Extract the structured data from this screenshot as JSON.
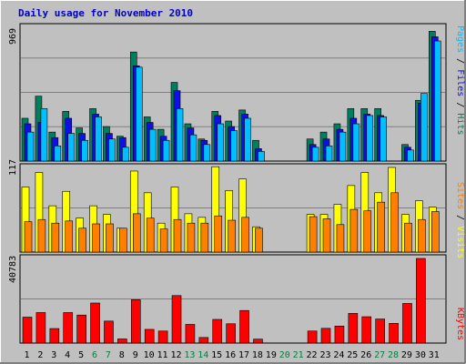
{
  "title": "Daily usage for November 2010",
  "chart_data": [
    {
      "type": "bar",
      "panel": "pages-files-hits",
      "y_max_label": "969",
      "ylim": [
        0,
        969
      ],
      "legend": [
        "Pages",
        "/",
        "Files",
        "/",
        "Hits"
      ],
      "categories": [
        "1",
        "2",
        "3",
        "4",
        "5",
        "6",
        "7",
        "8",
        "9",
        "10",
        "11",
        "12",
        "13",
        "14",
        "15",
        "16",
        "17",
        "18",
        "19",
        "20",
        "21",
        "22",
        "23",
        "24",
        "25",
        "26",
        "27",
        "28",
        "29",
        "30",
        "31"
      ],
      "weekend_days": [
        "6",
        "7",
        "13",
        "14",
        "20",
        "21",
        "27",
        "28"
      ],
      "series": [
        {
          "name": "Hits",
          "color": "#007f5f",
          "values": [
            310,
            470,
            210,
            360,
            240,
            380,
            250,
            180,
            790,
            320,
            230,
            570,
            270,
            160,
            360,
            290,
            370,
            150,
            0,
            0,
            0,
            160,
            210,
            270,
            380,
            380,
            380,
            0,
            120,
            440,
            940
          ]
        },
        {
          "name": "Files",
          "color": "#1010e6",
          "values": [
            270,
            280,
            170,
            310,
            200,
            340,
            200,
            170,
            690,
            280,
            180,
            510,
            240,
            150,
            330,
            250,
            340,
            90,
            0,
            0,
            0,
            120,
            160,
            230,
            310,
            340,
            330,
            0,
            100,
            420,
            900
          ]
        },
        {
          "name": "Pages",
          "color": "#00bfff",
          "values": [
            210,
            380,
            110,
            200,
            150,
            320,
            160,
            100,
            680,
            230,
            150,
            380,
            190,
            120,
            270,
            220,
            310,
            70,
            0,
            0,
            0,
            100,
            110,
            210,
            270,
            330,
            320,
            0,
            80,
            490,
            870
          ]
        }
      ]
    },
    {
      "type": "bar",
      "panel": "visits-sites",
      "y_max_label": "117",
      "ylim": [
        0,
        117
      ],
      "legend": [
        "Sites",
        "/",
        "Visits"
      ],
      "categories": [
        "1",
        "2",
        "3",
        "4",
        "5",
        "6",
        "7",
        "8",
        "9",
        "10",
        "11",
        "12",
        "13",
        "14",
        "15",
        "16",
        "17",
        "18",
        "19",
        "20",
        "21",
        "22",
        "23",
        "24",
        "25",
        "26",
        "27",
        "28",
        "29",
        "30",
        "31"
      ],
      "series": [
        {
          "name": "Visits",
          "color": "#ffff00",
          "values": [
            90,
            110,
            64,
            84,
            47,
            64,
            52,
            33,
            112,
            82,
            40,
            90,
            53,
            48,
            118,
            85,
            101,
            35,
            0,
            0,
            0,
            52,
            52,
            66,
            92,
            110,
            82,
            117,
            52,
            71,
            62
          ]
        },
        {
          "name": "Sites",
          "color": "#ff8000",
          "values": [
            42,
            45,
            40,
            43,
            33,
            39,
            39,
            33,
            53,
            47,
            32,
            45,
            40,
            40,
            50,
            44,
            48,
            33,
            0,
            0,
            0,
            49,
            46,
            38,
            59,
            57,
            69,
            82,
            40,
            45,
            56
          ]
        }
      ]
    },
    {
      "type": "bar",
      "panel": "kbytes",
      "y_max_label": "40783",
      "ylim": [
        0,
        40783
      ],
      "legend": [
        "KBytes"
      ],
      "categories": [
        "1",
        "2",
        "3",
        "4",
        "5",
        "6",
        "7",
        "8",
        "9",
        "10",
        "11",
        "12",
        "13",
        "14",
        "15",
        "16",
        "17",
        "18",
        "19",
        "20",
        "21",
        "22",
        "23",
        "24",
        "25",
        "26",
        "27",
        "28",
        "29",
        "30",
        "31"
      ],
      "series": [
        {
          "name": "KBytes",
          "color": "#ff0000",
          "values": [
            12500,
            14700,
            7000,
            14700,
            13500,
            19300,
            10600,
            2000,
            20900,
            6600,
            5800,
            22900,
            9000,
            2700,
            11400,
            9300,
            15700,
            1900,
            0,
            0,
            0,
            5800,
            7100,
            8200,
            14300,
            12700,
            11600,
            9500,
            19100,
            40783,
            0
          ]
        }
      ]
    }
  ]
}
